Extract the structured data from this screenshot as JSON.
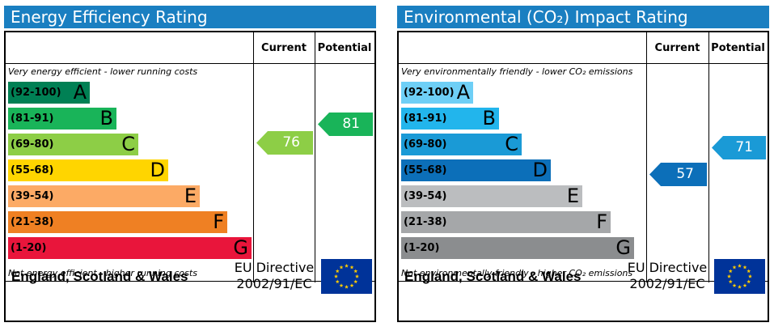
{
  "chart_data": [
    {
      "type": "table",
      "title": "Energy Efficiency Rating",
      "columns": [
        "Current",
        "Potential"
      ],
      "top_note": "Very energy efficient - lower running costs",
      "bottom_note": "Not energy efficient - higher running costs",
      "bands": [
        {
          "range": "(92-100)",
          "letter": "A",
          "color": "#008054",
          "text_color": "#000000"
        },
        {
          "range": "(81-91)",
          "letter": "B",
          "color": "#19b459",
          "text_color": "#000000"
        },
        {
          "range": "(69-80)",
          "letter": "C",
          "color": "#8dce46",
          "text_color": "#000000"
        },
        {
          "range": "(55-68)",
          "letter": "D",
          "color": "#ffd500",
          "text_color": "#000000"
        },
        {
          "range": "(39-54)",
          "letter": "E",
          "color": "#fcaa65",
          "text_color": "#000000"
        },
        {
          "range": "(21-38)",
          "letter": "F",
          "color": "#ef8023",
          "text_color": "#000000"
        },
        {
          "range": "(1-20)",
          "letter": "G",
          "color": "#e9153b",
          "text_color": "#000000"
        }
      ],
      "current": {
        "value": 76,
        "color": "#8dce46"
      },
      "potential": {
        "value": 81,
        "color": "#19b459"
      },
      "footer": {
        "country": "England, Scotland & Wales",
        "directive_line1": "EU Directive",
        "directive_line2": "2002/91/EC"
      }
    },
    {
      "type": "table",
      "title": "Environmental (CO₂) Impact Rating",
      "columns": [
        "Current",
        "Potential"
      ],
      "top_note": "Very environmentally friendly - lower CO₂ emissions",
      "bottom_note": "Not environmentally friendly - higher CO₂ emissions",
      "bands": [
        {
          "range": "(92-100)",
          "letter": "A",
          "color": "#6ecff6",
          "text_color": "#000000"
        },
        {
          "range": "(81-91)",
          "letter": "B",
          "color": "#22b5ec",
          "text_color": "#000000"
        },
        {
          "range": "(69-80)",
          "letter": "C",
          "color": "#1a9ad6",
          "text_color": "#000000"
        },
        {
          "range": "(55-68)",
          "letter": "D",
          "color": "#0c6fb9",
          "text_color": "#000000"
        },
        {
          "range": "(39-54)",
          "letter": "E",
          "color": "#bbbdbf",
          "text_color": "#000000"
        },
        {
          "range": "(21-38)",
          "letter": "F",
          "color": "#a5a7a9",
          "text_color": "#000000"
        },
        {
          "range": "(1-20)",
          "letter": "G",
          "color": "#8b8d8f",
          "text_color": "#000000"
        }
      ],
      "current": {
        "value": 57,
        "color": "#0c6fb9"
      },
      "potential": {
        "value": 71,
        "color": "#1a9ad6"
      },
      "footer": {
        "country": "England, Scotland & Wales",
        "directive_line1": "EU Directive",
        "directive_line2": "2002/91/EC"
      }
    }
  ],
  "icons": {
    "flag": "eu-flag-icon"
  }
}
